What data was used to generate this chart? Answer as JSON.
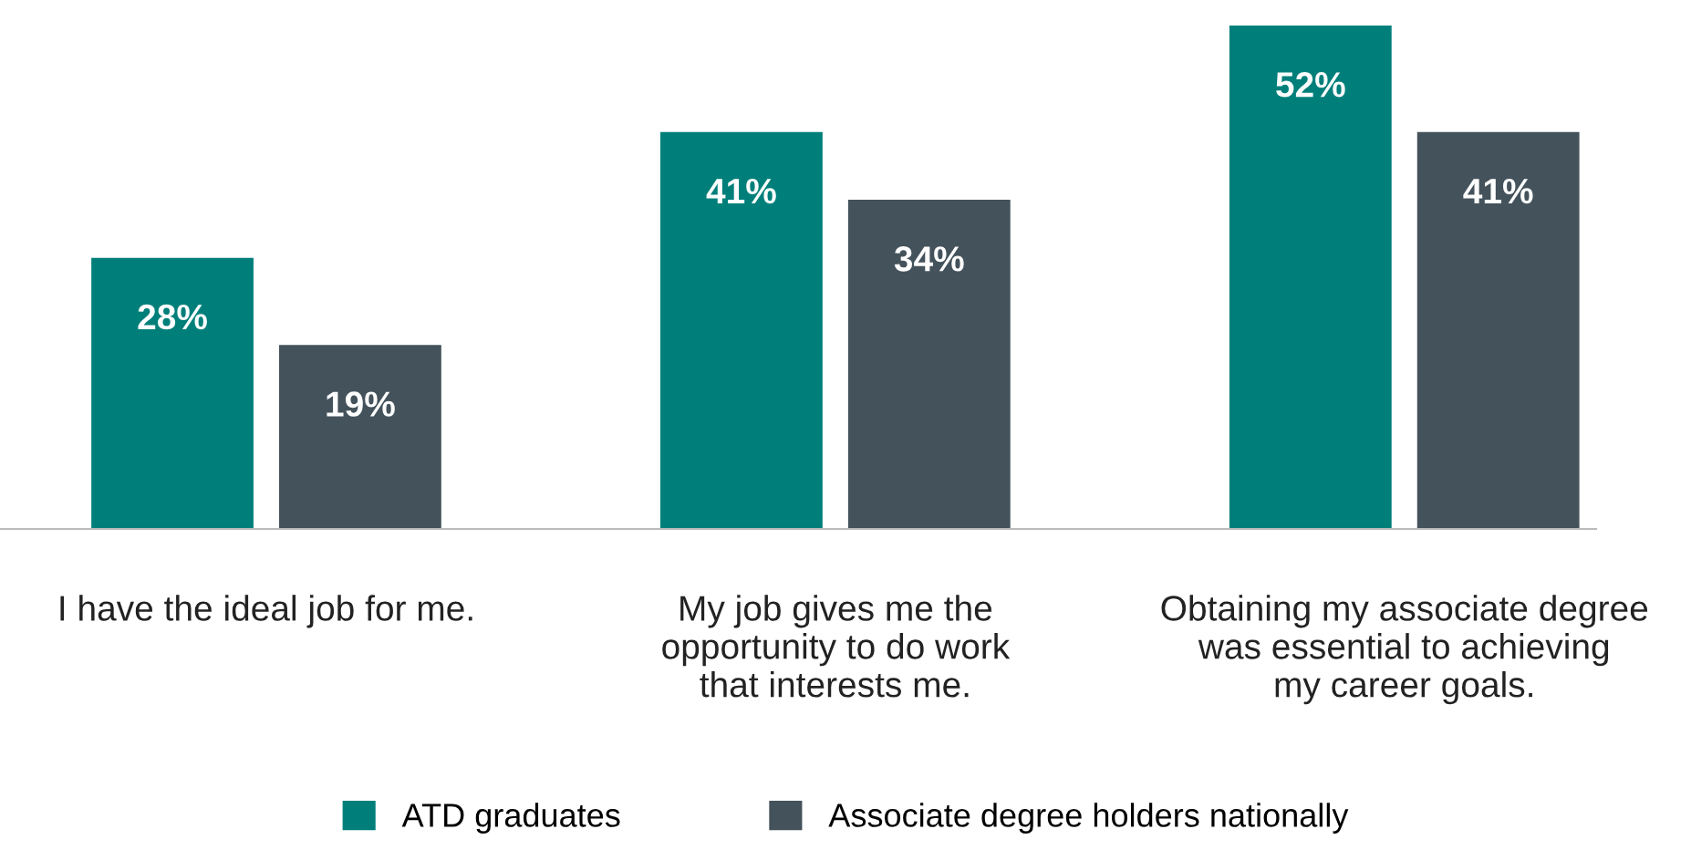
{
  "chart_data": {
    "type": "bar",
    "categories": [
      "I have the ideal job for me.",
      "My job gives me the\nopportunity to do work\nthat interests me.",
      "Obtaining my associate degree\nwas essential to achieving\nmy career goals."
    ],
    "series": [
      {
        "name": "ATD graduates",
        "color": "#007f7a",
        "values": [
          28,
          41,
          52
        ],
        "value_labels": [
          "28%",
          "41%",
          "52%"
        ]
      },
      {
        "name": "Associate degree holders nationally",
        "color": "#44525b",
        "values": [
          19,
          34,
          41
        ],
        "value_labels": [
          "19%",
          "34%",
          "41%"
        ]
      }
    ],
    "legend": "bottom",
    "grid": false
  }
}
